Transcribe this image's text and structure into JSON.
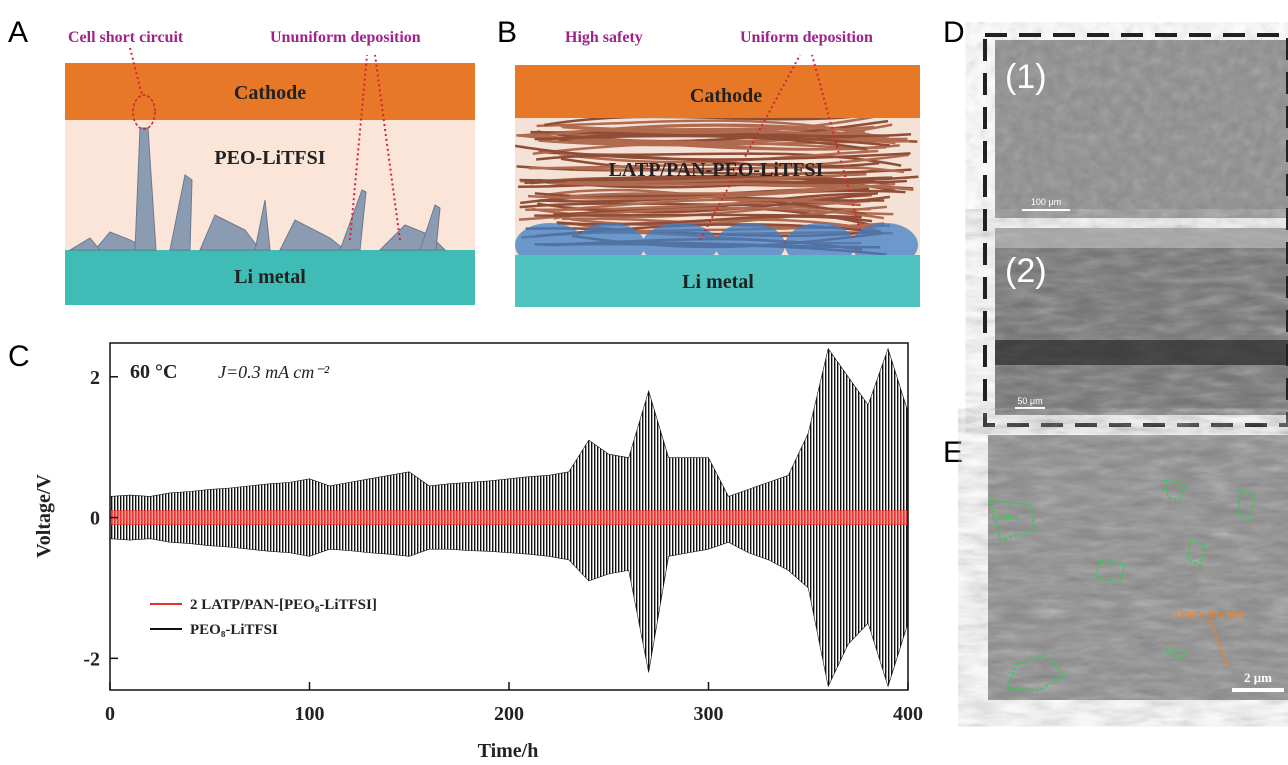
{
  "panel_labels": {
    "a": "A",
    "b": "B",
    "c": "C",
    "d": "D",
    "e": "E"
  },
  "panel_a": {
    "left_note": "Cell short circuit",
    "right_note": "Ununiform deposition",
    "top_layer": "Cathode",
    "middle_layer": "PEO-LiTFSI",
    "bottom_layer": "Li metal"
  },
  "panel_b": {
    "left_note": "High safety",
    "right_note": "Uniform deposition",
    "top_layer": "Cathode",
    "middle_layer": "LATP/PAN-PEO-LiTFSI",
    "bottom_layer": "Li metal"
  },
  "chart_data": {
    "type": "band",
    "temperature": "60 °C",
    "current_density": "J=0.3 mA cm⁻²",
    "x_label": "Time/h",
    "y_label": "Voltage/V",
    "x": [
      0,
      10,
      20,
      30,
      40,
      50,
      60,
      70,
      80,
      90,
      100,
      110,
      120,
      130,
      140,
      150,
      160,
      170,
      180,
      190,
      200,
      210,
      220,
      230,
      240,
      250,
      260,
      270,
      280,
      290,
      300,
      310,
      320,
      330,
      340,
      350,
      360,
      370,
      380,
      390,
      400
    ],
    "xlim": [
      0,
      400
    ],
    "xticks": [
      0,
      100,
      200,
      300,
      400
    ],
    "ylim": [
      -2.45,
      2.48
    ],
    "yticks": [
      -2,
      0,
      2
    ],
    "series": [
      {
        "name": "PEO₈-LiTFSI",
        "color": "#111111",
        "values": [
          0.3,
          0.32,
          0.3,
          0.35,
          0.37,
          0.4,
          0.42,
          0.45,
          0.48,
          0.5,
          0.55,
          0.45,
          0.5,
          0.55,
          0.6,
          0.65,
          0.45,
          0.48,
          0.5,
          0.52,
          0.55,
          0.58,
          0.6,
          0.65,
          1.1,
          0.9,
          0.85,
          1.8,
          0.85,
          0.85,
          0.85,
          0.3,
          0.4,
          0.5,
          0.6,
          1.2,
          2.4,
          2.0,
          1.6,
          2.4,
          1.5
        ],
        "low_values": [
          -0.3,
          -0.32,
          -0.3,
          -0.35,
          -0.37,
          -0.4,
          -0.42,
          -0.45,
          -0.48,
          -0.5,
          -0.55,
          -0.45,
          -0.47,
          -0.5,
          -0.52,
          -0.55,
          -0.45,
          -0.45,
          -0.47,
          -0.48,
          -0.5,
          -0.52,
          -0.55,
          -0.6,
          -0.9,
          -0.8,
          -0.75,
          -2.2,
          -0.55,
          -0.5,
          -0.45,
          -0.35,
          -0.5,
          -0.6,
          -0.75,
          -1.0,
          -2.4,
          -1.8,
          -1.5,
          -2.4,
          -1.5
        ]
      },
      {
        "name": "2 LATP/PAN-[PEO₈-LiTFSI]",
        "color": "#e8322c",
        "values": [
          0.1,
          0.1,
          0.1,
          0.1,
          0.1,
          0.1,
          0.1,
          0.1,
          0.1,
          0.1,
          0.1,
          0.1,
          0.1,
          0.1,
          0.1,
          0.1,
          0.1,
          0.1,
          0.1,
          0.1,
          0.1,
          0.1,
          0.1,
          0.1,
          0.1,
          0.1,
          0.1,
          0.1,
          0.1,
          0.1,
          0.1,
          0.1,
          0.1,
          0.1,
          0.1,
          0.1,
          0.1,
          0.1,
          0.1,
          0.1,
          0.1
        ],
        "low_values": [
          -0.1,
          -0.1,
          -0.1,
          -0.1,
          -0.1,
          -0.1,
          -0.1,
          -0.1,
          -0.1,
          -0.1,
          -0.1,
          -0.1,
          -0.1,
          -0.1,
          -0.1,
          -0.1,
          -0.1,
          -0.1,
          -0.1,
          -0.1,
          -0.1,
          -0.1,
          -0.1,
          -0.1,
          -0.1,
          -0.1,
          -0.1,
          -0.1,
          -0.1,
          -0.1,
          -0.1,
          -0.1,
          -0.1,
          -0.1,
          -0.1,
          -0.1,
          -0.1,
          -0.1,
          -0.1,
          -0.1,
          -0.1
        ]
      }
    ]
  },
  "panel_d": {
    "image_1_label": "(1)",
    "image_1_scale": "100 μm",
    "image_2_label": "(2)",
    "image_2_scale": "50 μm"
  },
  "panel_e": {
    "voids_label": "Voids",
    "dendrite_label": "Lithium dendrites",
    "scale": "2 μm"
  }
}
